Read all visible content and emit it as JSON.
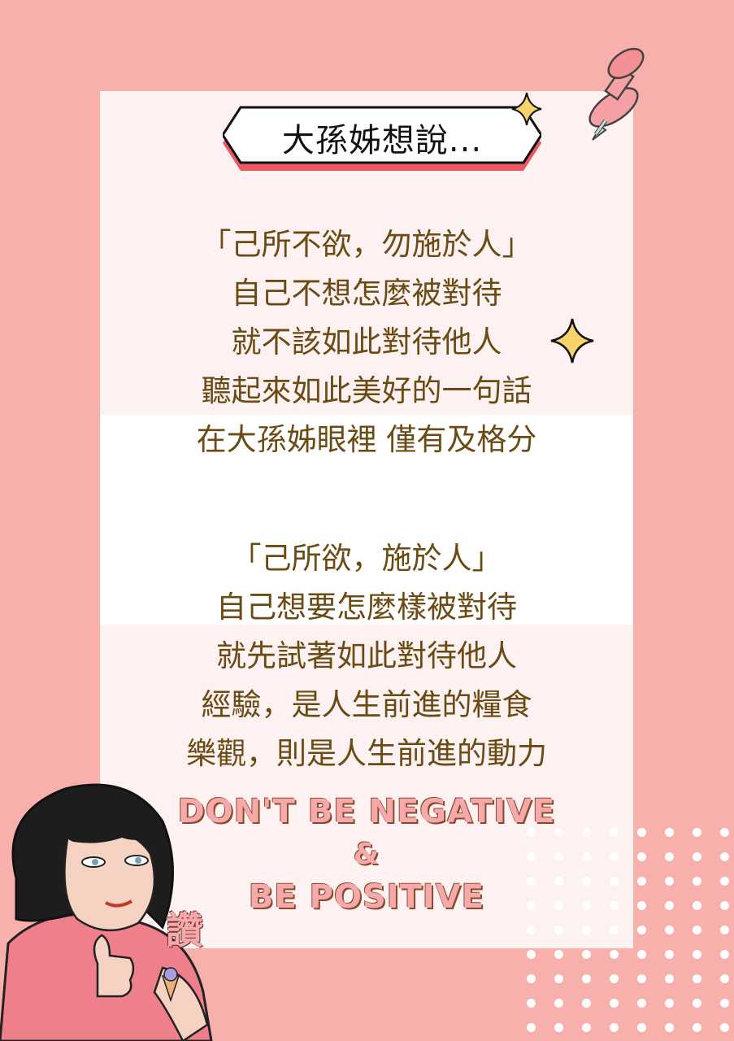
{
  "title": "大孫姊想說...",
  "paragraph1": [
    "「己所不欲，勿施於人」",
    "自己不想怎麼被對待",
    "就不該如此對待他人",
    "聽起來如此美好的一句話",
    "在大孫姊眼裡 僅有及格分"
  ],
  "paragraph2": [
    "「己所欲，施於人」",
    "自己想要怎麼樣被對待",
    "就先試著如此對待他人",
    "經驗，是人生前進的糧食",
    "樂觀，則是人生前進的動力"
  ],
  "slogan": {
    "line1": "DON'T BE NEGATIVE",
    "line2": "&",
    "line3": "BE POSITIVE"
  },
  "praise_stamp": "讚",
  "colors": {
    "background": "#f7b0ab",
    "card": "#fdf2f1",
    "body_text": "#6b4a14",
    "slogan": "#f6a9aa",
    "title_banner_shadow": "#e85a5f"
  },
  "icons": [
    "pushpin-icon",
    "sparkle-icon",
    "sparkle-icon",
    "thumbs-up-character"
  ]
}
